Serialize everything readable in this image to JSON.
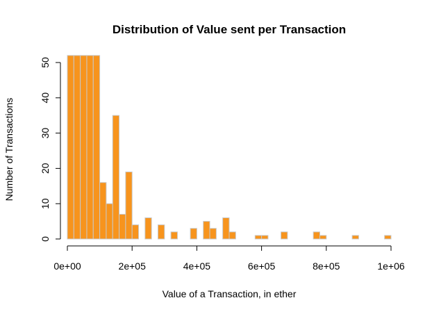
{
  "chart_data": {
    "type": "bar",
    "title": "Distribution of Value sent per Transaction",
    "xlabel": "Value of a Transaction, in ether",
    "ylabel": "Number of Transactions",
    "bar_color": "#f7941d",
    "bar_border_color": "#c8c8c8",
    "bin_width": 20000,
    "bin_starts": [
      0,
      20000,
      40000,
      60000,
      80000,
      100000,
      120000,
      140000,
      160000,
      180000,
      200000,
      220000,
      240000,
      260000,
      280000,
      300000,
      320000,
      340000,
      360000,
      380000,
      400000,
      420000,
      440000,
      460000,
      480000,
      500000,
      520000,
      540000,
      560000,
      580000,
      600000,
      620000,
      640000,
      660000,
      680000,
      700000,
      720000,
      740000,
      760000,
      780000,
      800000,
      820000,
      840000,
      860000,
      880000,
      900000,
      920000,
      940000,
      960000,
      980000
    ],
    "values": [
      52,
      52,
      52,
      52,
      52,
      16,
      10,
      35,
      7,
      19,
      4,
      0,
      6,
      0,
      4,
      0,
      2,
      0,
      0,
      3,
      0,
      5,
      3,
      0,
      6,
      2,
      0,
      0,
      0,
      1,
      1,
      0,
      0,
      2,
      0,
      0,
      0,
      0,
      2,
      1,
      0,
      0,
      0,
      0,
      1,
      0,
      0,
      0,
      0,
      1
    ],
    "xlim": [
      0,
      1000000
    ],
    "ylim": [
      0,
      52
    ],
    "x_ticks": [
      {
        "value": 0,
        "label": "0e+00"
      },
      {
        "value": 200000,
        "label": "2e+05"
      },
      {
        "value": 400000,
        "label": "4e+05"
      },
      {
        "value": 600000,
        "label": "6e+05"
      },
      {
        "value": 800000,
        "label": "8e+05"
      },
      {
        "value": 1000000,
        "label": "1e+06"
      }
    ],
    "y_ticks": [
      {
        "value": 0,
        "label": "0"
      },
      {
        "value": 10,
        "label": "10"
      },
      {
        "value": 20,
        "label": "20"
      },
      {
        "value": 30,
        "label": "30"
      },
      {
        "value": 40,
        "label": "40"
      },
      {
        "value": 50,
        "label": "50"
      }
    ],
    "grid": false,
    "legend": "none"
  }
}
